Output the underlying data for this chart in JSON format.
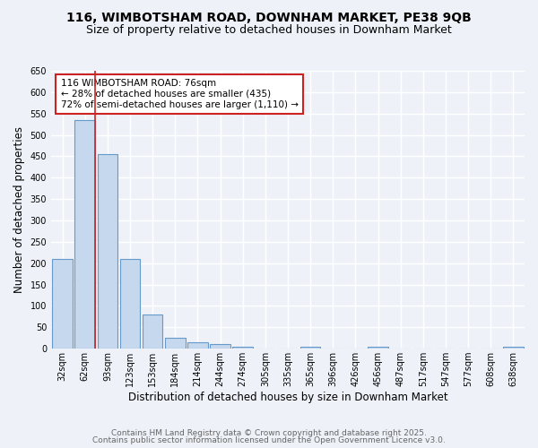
{
  "title": "116, WIMBOTSHAM ROAD, DOWNHAM MARKET, PE38 9QB",
  "subtitle": "Size of property relative to detached houses in Downham Market",
  "xlabel": "Distribution of detached houses by size in Downham Market",
  "ylabel": "Number of detached properties",
  "categories": [
    "32sqm",
    "62sqm",
    "93sqm",
    "123sqm",
    "153sqm",
    "184sqm",
    "214sqm",
    "244sqm",
    "274sqm",
    "305sqm",
    "335sqm",
    "365sqm",
    "396sqm",
    "426sqm",
    "456sqm",
    "487sqm",
    "517sqm",
    "547sqm",
    "577sqm",
    "608sqm",
    "638sqm"
  ],
  "values": [
    210,
    535,
    455,
    210,
    80,
    25,
    15,
    10,
    5,
    0,
    0,
    5,
    0,
    0,
    5,
    0,
    0,
    0,
    0,
    0,
    4
  ],
  "bar_color": "#c5d8ed",
  "bar_edge_color": "#6699cc",
  "vline_color": "#cc2222",
  "annotation_text": "116 WIMBOTSHAM ROAD: 76sqm\n← 28% of detached houses are smaller (435)\n72% of semi-detached houses are larger (1,110) →",
  "annotation_box_color": "white",
  "annotation_box_edge_color": "#cc2222",
  "ylim": [
    0,
    650
  ],
  "yticks": [
    0,
    50,
    100,
    150,
    200,
    250,
    300,
    350,
    400,
    450,
    500,
    550,
    600,
    650
  ],
  "bg_color": "#eef2f8",
  "grid_color": "white",
  "footer_line1": "Contains HM Land Registry data © Crown copyright and database right 2025.",
  "footer_line2": "Contains public sector information licensed under the Open Government Licence v3.0.",
  "title_fontsize": 10,
  "subtitle_fontsize": 9,
  "xlabel_fontsize": 8.5,
  "ylabel_fontsize": 8.5,
  "tick_fontsize": 7,
  "annotation_fontsize": 7.5,
  "footer_fontsize": 6.5
}
